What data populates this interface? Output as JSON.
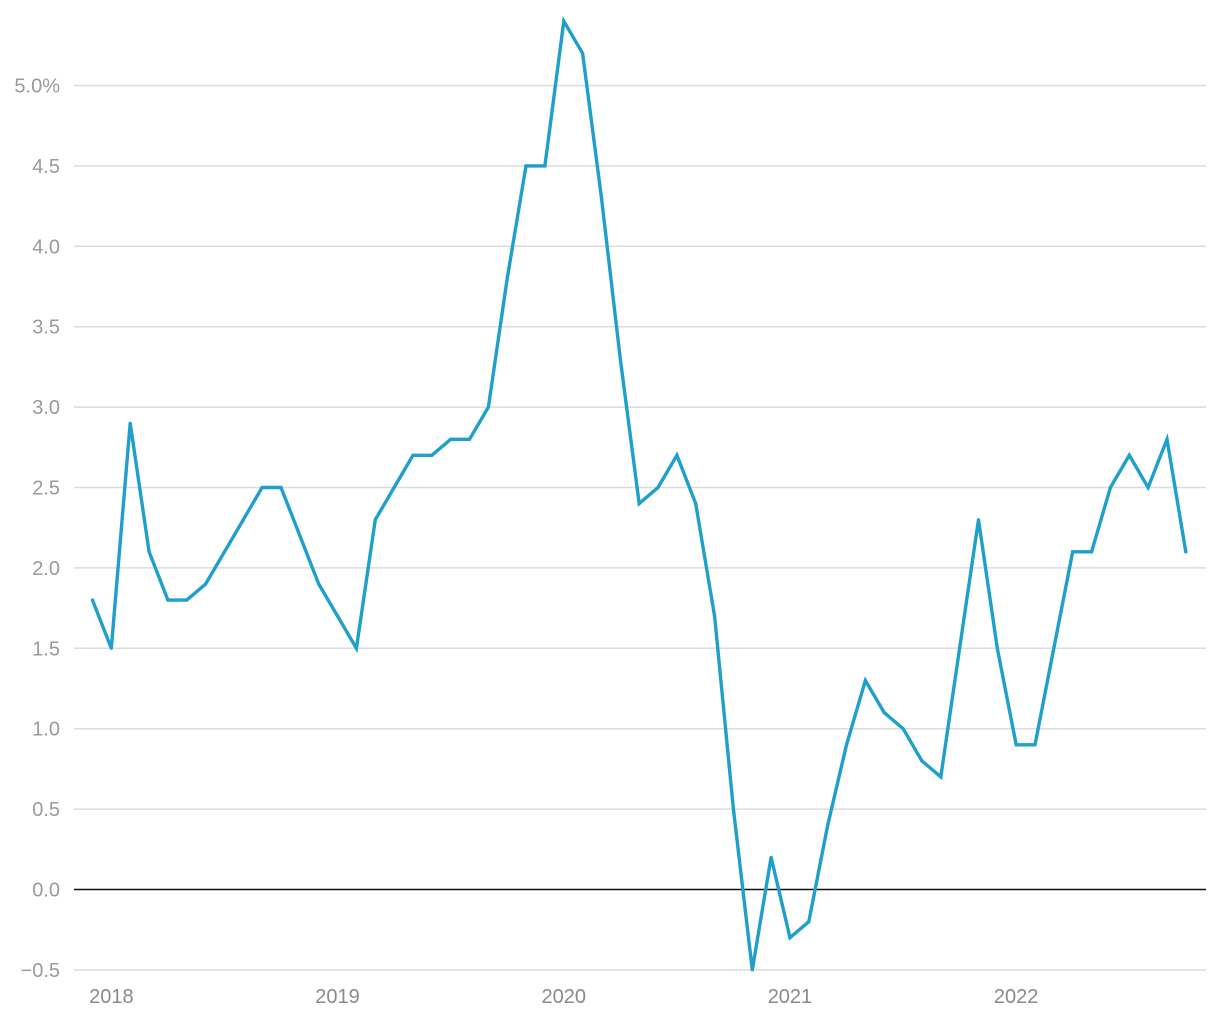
{
  "chart_data": {
    "type": "line",
    "title": "",
    "xlabel": "",
    "ylabel": "",
    "ylim": [
      -0.5,
      5.4
    ],
    "y_ticks": [
      {
        "value": 5.0,
        "label": "5.0%"
      },
      {
        "value": 4.5,
        "label": "4.5"
      },
      {
        "value": 4.0,
        "label": "4.0"
      },
      {
        "value": 3.5,
        "label": "3.5"
      },
      {
        "value": 3.0,
        "label": "3.0"
      },
      {
        "value": 2.5,
        "label": "2.5"
      },
      {
        "value": 2.0,
        "label": "2.0"
      },
      {
        "value": 1.5,
        "label": "1.5"
      },
      {
        "value": 1.0,
        "label": "1.0"
      },
      {
        "value": 0.5,
        "label": "0.5"
      },
      {
        "value": 0.0,
        "label": "0.0"
      },
      {
        "value": -0.5,
        "label": "−0.5"
      }
    ],
    "x_ticks": [
      {
        "value": "2018-01",
        "label": "2018"
      },
      {
        "value": "2019-01",
        "label": "2019"
      },
      {
        "value": "2020-01",
        "label": "2020"
      },
      {
        "value": "2021-01",
        "label": "2021"
      },
      {
        "value": "2022-01",
        "label": "2022"
      }
    ],
    "grid": true,
    "zero_line": true,
    "series": [
      {
        "color": "#1f9fcc",
        "points": [
          {
            "x": "2017-12",
            "y": 1.8
          },
          {
            "x": "2018-01",
            "y": 1.5
          },
          {
            "x": "2018-02",
            "y": 2.9
          },
          {
            "x": "2018-03",
            "y": 2.1
          },
          {
            "x": "2018-04",
            "y": 1.8
          },
          {
            "x": "2018-05",
            "y": 1.8
          },
          {
            "x": "2018-06",
            "y": 1.9
          },
          {
            "x": "2018-07",
            "y": 2.1
          },
          {
            "x": "2018-08",
            "y": 2.3
          },
          {
            "x": "2018-09",
            "y": 2.5
          },
          {
            "x": "2018-10",
            "y": 2.5
          },
          {
            "x": "2018-11",
            "y": 2.2
          },
          {
            "x": "2018-12",
            "y": 1.9
          },
          {
            "x": "2019-01",
            "y": 1.7
          },
          {
            "x": "2019-02",
            "y": 1.5
          },
          {
            "x": "2019-03",
            "y": 2.3
          },
          {
            "x": "2019-04",
            "y": 2.5
          },
          {
            "x": "2019-05",
            "y": 2.7
          },
          {
            "x": "2019-06",
            "y": 2.7
          },
          {
            "x": "2019-07",
            "y": 2.8
          },
          {
            "x": "2019-08",
            "y": 2.8
          },
          {
            "x": "2019-09",
            "y": 3.0
          },
          {
            "x": "2019-10",
            "y": 3.8
          },
          {
            "x": "2019-11",
            "y": 4.5
          },
          {
            "x": "2019-12",
            "y": 4.5
          },
          {
            "x": "2020-01",
            "y": 5.4
          },
          {
            "x": "2020-02",
            "y": 5.2
          },
          {
            "x": "2020-03",
            "y": 4.3
          },
          {
            "x": "2020-04",
            "y": 3.3
          },
          {
            "x": "2020-05",
            "y": 2.4
          },
          {
            "x": "2020-06",
            "y": 2.5
          },
          {
            "x": "2020-07",
            "y": 2.7
          },
          {
            "x": "2020-08",
            "y": 2.4
          },
          {
            "x": "2020-09",
            "y": 1.7
          },
          {
            "x": "2020-10",
            "y": 0.5
          },
          {
            "x": "2020-11",
            "y": -0.5
          },
          {
            "x": "2020-12",
            "y": 0.2
          },
          {
            "x": "2021-01",
            "y": -0.3
          },
          {
            "x": "2021-02",
            "y": -0.2
          },
          {
            "x": "2021-03",
            "y": 0.4
          },
          {
            "x": "2021-04",
            "y": 0.9
          },
          {
            "x": "2021-05",
            "y": 1.3
          },
          {
            "x": "2021-06",
            "y": 1.1
          },
          {
            "x": "2021-07",
            "y": 1.0
          },
          {
            "x": "2021-08",
            "y": 0.8
          },
          {
            "x": "2021-09",
            "y": 0.7
          },
          {
            "x": "2021-10",
            "y": 1.5
          },
          {
            "x": "2021-11",
            "y": 2.3
          },
          {
            "x": "2021-12",
            "y": 1.5
          },
          {
            "x": "2022-01",
            "y": 0.9
          },
          {
            "x": "2022-02",
            "y": 0.9
          },
          {
            "x": "2022-03",
            "y": 1.5
          },
          {
            "x": "2022-04",
            "y": 2.1
          },
          {
            "x": "2022-05",
            "y": 2.1
          },
          {
            "x": "2022-06",
            "y": 2.5
          },
          {
            "x": "2022-07",
            "y": 2.7
          },
          {
            "x": "2022-08",
            "y": 2.5
          },
          {
            "x": "2022-09",
            "y": 2.8
          },
          {
            "x": "2022-10",
            "y": 2.1
          }
        ]
      }
    ]
  },
  "style": {
    "grid_color": "#dcdcdc",
    "zero_line_color": "#111111",
    "tick_label_color": "#9a9a9a"
  }
}
